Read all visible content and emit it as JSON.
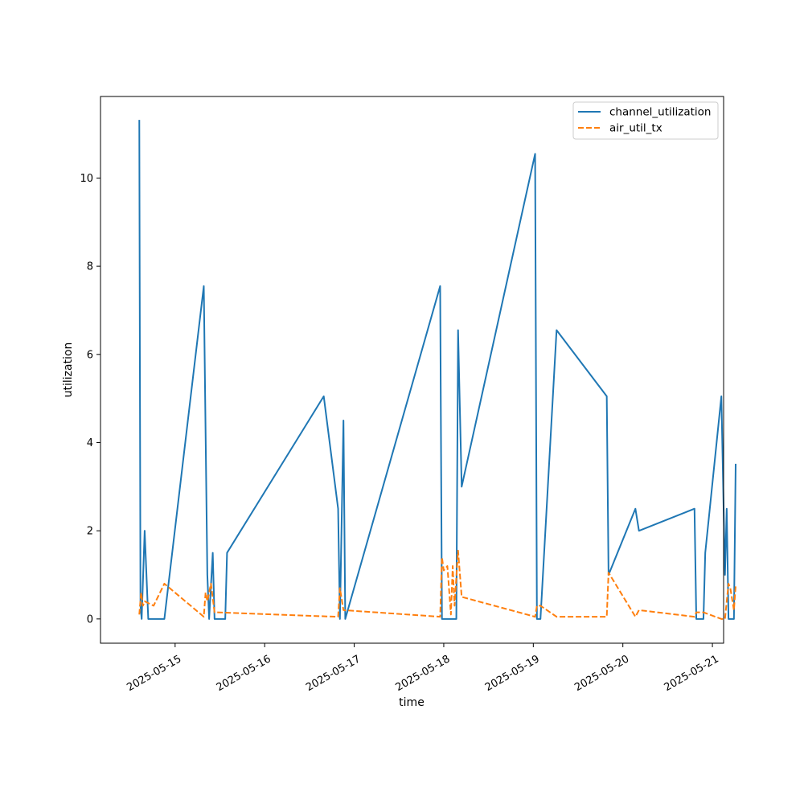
{
  "chart_data": {
    "type": "line",
    "title": "",
    "xlabel": "time",
    "ylabel": "utilization",
    "xlim": [
      "2025-05-14T04:00",
      "2025-05-21T03:00"
    ],
    "ylim": [
      -0.55,
      11.85
    ],
    "x_ticks": [
      "2025-05-15",
      "2025-05-16",
      "2025-05-17",
      "2025-05-18",
      "2025-05-19",
      "2025-05-20",
      "2025-05-21"
    ],
    "y_ticks": [
      0,
      2,
      4,
      6,
      8,
      10
    ],
    "grid": false,
    "legend_position": "top-right",
    "series": [
      {
        "name": "channel_utilization",
        "color": "#1f77b4",
        "style": "solid",
        "points": [
          [
            "2025-05-14T14:24",
            11.3
          ],
          [
            "2025-05-14T14:43",
            0.3
          ],
          [
            "2025-05-14T15:02",
            0.0
          ],
          [
            "2025-05-14T15:50",
            2.0
          ],
          [
            "2025-05-14T16:48",
            0.0
          ],
          [
            "2025-05-14T21:07",
            0.0
          ],
          [
            "2025-05-15T07:41",
            7.55
          ],
          [
            "2025-05-15T08:38",
            1.0
          ],
          [
            "2025-05-15T09:07",
            0.0
          ],
          [
            "2025-05-15T10:05",
            1.5
          ],
          [
            "2025-05-15T10:34",
            0.0
          ],
          [
            "2025-05-15T11:31",
            0.0
          ],
          [
            "2025-05-15T13:26",
            0.0
          ],
          [
            "2025-05-15T13:55",
            1.5
          ],
          [
            "2025-05-16T15:50",
            5.05
          ],
          [
            "2025-05-16T19:41",
            2.5
          ],
          [
            "2025-05-16T20:10",
            0.0
          ],
          [
            "2025-05-16T21:07",
            4.5
          ],
          [
            "2025-05-16T21:36",
            0.0
          ],
          [
            "2025-05-17T23:02",
            7.55
          ],
          [
            "2025-05-17T23:31",
            0.0
          ],
          [
            "2025-05-18T03:22",
            0.0
          ],
          [
            "2025-05-18T03:50",
            6.55
          ],
          [
            "2025-05-18T04:48",
            3.0
          ],
          [
            "2025-05-19T00:29",
            10.55
          ],
          [
            "2025-05-19T00:58",
            0.0
          ],
          [
            "2025-05-19T01:55",
            0.0
          ],
          [
            "2025-05-19T06:14",
            6.55
          ],
          [
            "2025-05-19T19:41",
            5.05
          ],
          [
            "2025-05-19T20:10",
            1.0
          ],
          [
            "2025-05-20T03:22",
            2.5
          ],
          [
            "2025-05-20T04:19",
            2.0
          ],
          [
            "2025-05-20T19:12",
            2.5
          ],
          [
            "2025-05-20T19:41",
            0.0
          ],
          [
            "2025-05-20T21:36",
            0.0
          ],
          [
            "2025-05-20T22:05",
            1.5
          ],
          [
            "2025-05-21T02:24",
            5.05
          ],
          [
            "2025-05-21T03:22",
            1.0
          ],
          [
            "2025-05-21T03:50",
            2.5
          ],
          [
            "2025-05-21T04:19",
            0.0
          ],
          [
            "2025-05-21T05:46",
            0.0
          ],
          [
            "2025-05-21T06:14",
            3.5
          ]
        ]
      },
      {
        "name": "air_util_tx",
        "color": "#ff7f0e",
        "style": "dashed",
        "points": [
          [
            "2025-05-14T14:24",
            0.1
          ],
          [
            "2025-05-14T14:53",
            0.6
          ],
          [
            "2025-05-14T15:22",
            0.3
          ],
          [
            "2025-05-14T15:50",
            0.4
          ],
          [
            "2025-05-14T18:14",
            0.3
          ],
          [
            "2025-05-14T21:07",
            0.8
          ],
          [
            "2025-05-15T07:41",
            0.05
          ],
          [
            "2025-05-15T08:10",
            0.6
          ],
          [
            "2025-05-15T08:38",
            0.4
          ],
          [
            "2025-05-15T09:36",
            0.8
          ],
          [
            "2025-05-15T10:34",
            0.15
          ],
          [
            "2025-05-15T11:02",
            0.15
          ],
          [
            "2025-05-16T19:12",
            0.05
          ],
          [
            "2025-05-16T19:41",
            0.05
          ],
          [
            "2025-05-16T20:10",
            0.7
          ],
          [
            "2025-05-16T21:07",
            0.2
          ],
          [
            "2025-05-17T23:02",
            0.05
          ],
          [
            "2025-05-17T23:31",
            1.4
          ],
          [
            "2025-05-18T00:00",
            1.1
          ],
          [
            "2025-05-18T00:58",
            1.2
          ],
          [
            "2025-05-18T01:55",
            0.1
          ],
          [
            "2025-05-18T02:24",
            1.2
          ],
          [
            "2025-05-18T02:53",
            0.3
          ],
          [
            "2025-05-18T03:50",
            1.55
          ],
          [
            "2025-05-18T04:48",
            0.5
          ],
          [
            "2025-05-19T00:29",
            0.05
          ],
          [
            "2025-05-19T00:58",
            0.3
          ],
          [
            "2025-05-19T01:55",
            0.3
          ],
          [
            "2025-05-19T06:14",
            0.05
          ],
          [
            "2025-05-19T19:41",
            0.05
          ],
          [
            "2025-05-19T20:10",
            1.05
          ],
          [
            "2025-05-20T03:22",
            0.05
          ],
          [
            "2025-05-20T04:19",
            0.2
          ],
          [
            "2025-05-20T19:12",
            0.05
          ],
          [
            "2025-05-20T19:41",
            0.15
          ],
          [
            "2025-05-20T21:36",
            0.15
          ],
          [
            "2025-05-21T02:24",
            0.0
          ],
          [
            "2025-05-21T03:22",
            0.0
          ],
          [
            "2025-05-21T04:19",
            0.8
          ],
          [
            "2025-05-21T04:48",
            0.7
          ],
          [
            "2025-05-21T05:46",
            0.2
          ],
          [
            "2025-05-21T06:14",
            0.75
          ]
        ]
      }
    ]
  }
}
